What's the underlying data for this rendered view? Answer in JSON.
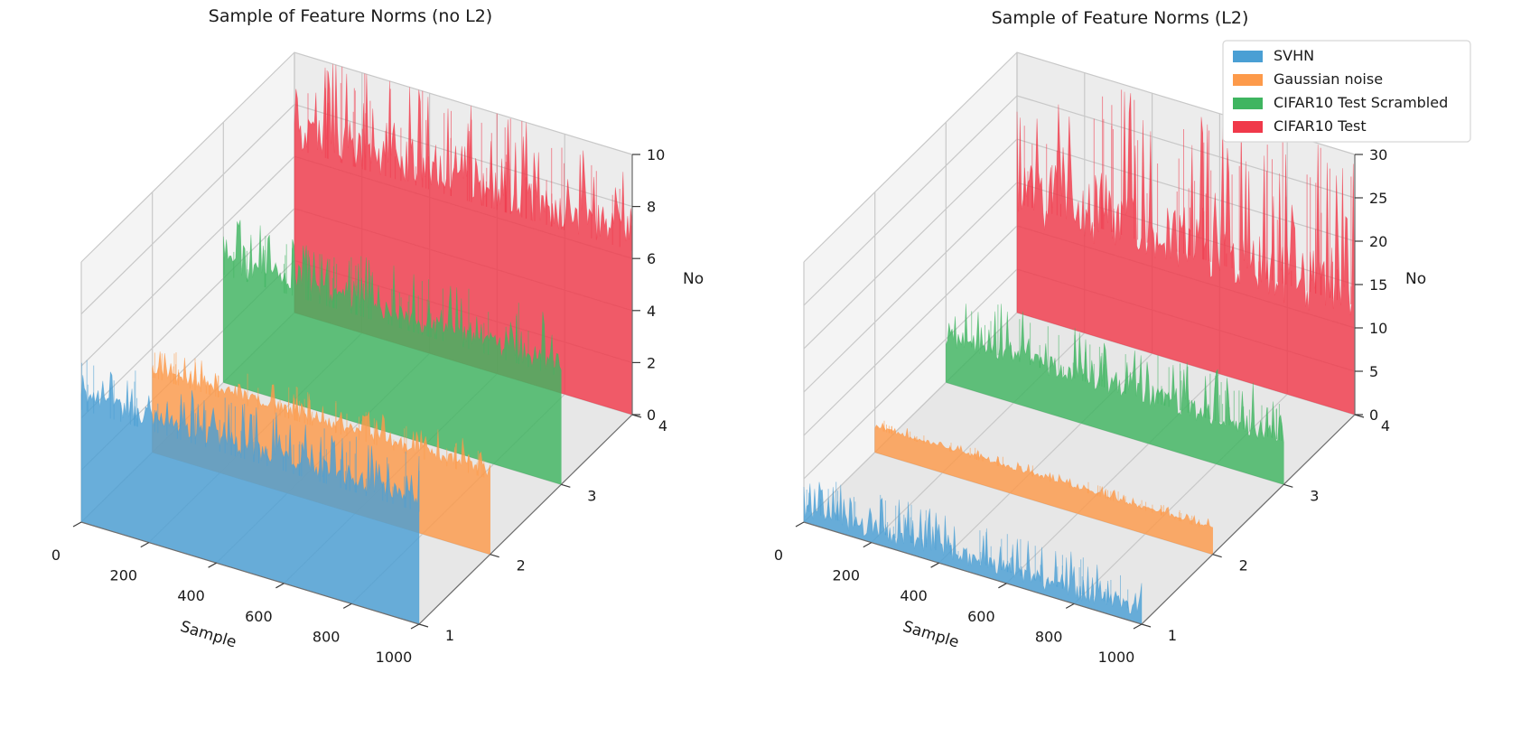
{
  "chart_data": [
    {
      "type": "area",
      "title": "Sample of Feature Norms (no L2)",
      "xlabel": "Sample",
      "ylabel": "",
      "zlabel": "No",
      "x_ticks": [
        "0",
        "200",
        "400",
        "600",
        "800",
        "1000"
      ],
      "y_ticks": [
        "1",
        "2",
        "3",
        "4"
      ],
      "z_ticks": [
        "0",
        "2",
        "4",
        "6",
        "8",
        "10"
      ],
      "xlim": [
        0,
        1000
      ],
      "ylim": [
        1,
        4
      ],
      "zlim": [
        0,
        10
      ],
      "series": [
        {
          "name": "SVHN",
          "y": 1,
          "x_range": [
            0,
            1000
          ],
          "baseline": 4.8,
          "peak": 6.5,
          "color": "#4a9fd4"
        },
        {
          "name": "Gaussian noise",
          "y": 2,
          "x_range": [
            0,
            1000
          ],
          "baseline": 3.2,
          "peak": 4.2,
          "color": "#fd9a4a"
        },
        {
          "name": "CIFAR10 Test Scrambled",
          "y": 3,
          "x_range": [
            0,
            1000
          ],
          "baseline": 4.6,
          "peak": 6.5,
          "color": "#3fb560"
        },
        {
          "name": "CIFAR10 Test",
          "y": 4,
          "x_range": [
            0,
            1000
          ],
          "baseline": 7.0,
          "peak": 10.3,
          "color": "#f0394a"
        }
      ]
    },
    {
      "type": "area",
      "title": "Sample of Feature Norms (L2)",
      "xlabel": "Sample",
      "ylabel": "",
      "zlabel": "No",
      "x_ticks": [
        "0",
        "200",
        "400",
        "600",
        "800",
        "1000"
      ],
      "y_ticks": [
        "1",
        "2",
        "3",
        "4"
      ],
      "z_ticks": [
        "0",
        "5",
        "10",
        "15",
        "20",
        "25",
        "30"
      ],
      "xlim": [
        0,
        1000
      ],
      "ylim": [
        1,
        4
      ],
      "zlim": [
        0,
        30
      ],
      "series": [
        {
          "name": "SVHN",
          "y": 1,
          "x_range": [
            0,
            1000
          ],
          "baseline": 1.5,
          "peak": 6.0,
          "color": "#4a9fd4"
        },
        {
          "name": "Gaussian noise",
          "y": 2,
          "x_range": [
            0,
            1000
          ],
          "baseline": 3.0,
          "peak": 4.0,
          "color": "#fd9a4a"
        },
        {
          "name": "CIFAR10 Test Scrambled",
          "y": 3,
          "x_range": [
            0,
            1000
          ],
          "baseline": 5.5,
          "peak": 11.0,
          "color": "#3fb560"
        },
        {
          "name": "CIFAR10 Test",
          "y": 4,
          "x_range": [
            0,
            1000
          ],
          "baseline": 14.0,
          "peak": 30.0,
          "color": "#f0394a"
        }
      ]
    }
  ],
  "legend": {
    "location": "upper-right",
    "entries": [
      {
        "label": "SVHN",
        "color": "#4a9fd4"
      },
      {
        "label": "Gaussian noise",
        "color": "#fd9a4a"
      },
      {
        "label": "CIFAR10 Test Scrambled",
        "color": "#3fb560"
      },
      {
        "label": "CIFAR10 Test",
        "color": "#f0394a"
      }
    ]
  }
}
